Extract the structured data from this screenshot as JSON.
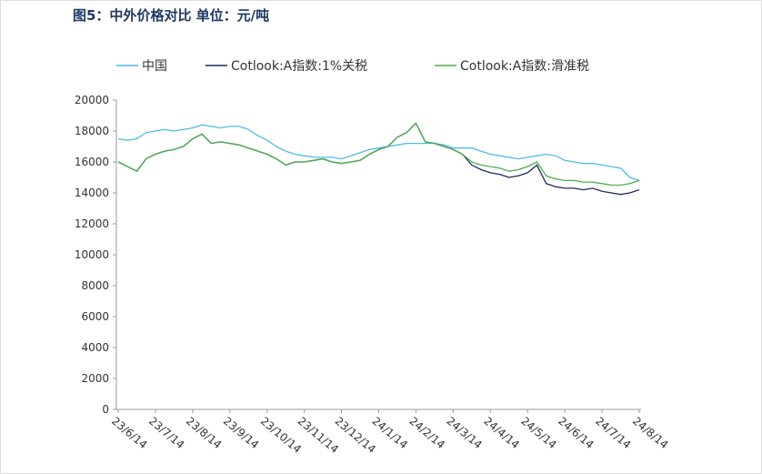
{
  "chart_data": {
    "type": "line",
    "title": "图5：中外价格对比 单位：元/吨",
    "categories": [
      "23/6/14",
      null,
      null,
      null,
      "23/7/14",
      null,
      null,
      null,
      "23/8/14",
      null,
      null,
      null,
      "23/9/14",
      null,
      null,
      null,
      "23/10/14",
      null,
      null,
      null,
      "23/11/14",
      null,
      null,
      null,
      "23/12/14",
      null,
      null,
      null,
      "24/1/14",
      null,
      null,
      null,
      "24/2/14",
      null,
      null,
      null,
      "24/3/14",
      null,
      null,
      null,
      "24/4/14",
      null,
      null,
      null,
      "24/5/14",
      null,
      null,
      null,
      "24/6/14",
      null,
      null,
      null,
      "24/7/14",
      null,
      null,
      null,
      "24/8/14"
    ],
    "series": [
      {
        "name": "中国",
        "color": "#4fbde6",
        "values": [
          17500,
          17400,
          17500,
          17900,
          18000,
          18100,
          18000,
          18100,
          18200,
          18400,
          18300,
          18200,
          18300,
          18300,
          18100,
          17700,
          17400,
          17000,
          16700,
          16500,
          16400,
          16300,
          16300,
          16300,
          16200,
          16400,
          16600,
          16800,
          16900,
          17000,
          17100,
          17200,
          17200,
          17200,
          17200,
          17100,
          16900,
          16900,
          16900,
          16700,
          16500,
          16400,
          16300,
          16200,
          16300,
          16400,
          16500,
          16400,
          16100,
          16000,
          15900,
          15900,
          15800,
          15700,
          15600,
          15000,
          14800
        ]
      },
      {
        "name": "Cotlook:A指数:1%关税",
        "color": "#1f2d5a",
        "values": [
          16000,
          15700,
          15400,
          16200,
          16500,
          16700,
          16800,
          17000,
          17500,
          17800,
          17200,
          17300,
          17200,
          17100,
          16900,
          16700,
          16500,
          16200,
          15800,
          16000,
          16000,
          16100,
          16200,
          16000,
          15900,
          16000,
          16100,
          16500,
          16800,
          17000,
          17600,
          17900,
          18500,
          17300,
          17200,
          17000,
          16800,
          16500,
          15800,
          15500,
          15300,
          15200,
          15000,
          15100,
          15300,
          15800,
          14600,
          14400,
          14300,
          14300,
          14200,
          14300,
          14100,
          14000,
          13900,
          14000,
          14200
        ]
      },
      {
        "name": "Cotlook:A指数:滑准税",
        "color": "#4caf50",
        "values": [
          16000,
          15700,
          15400,
          16200,
          16500,
          16700,
          16800,
          17000,
          17500,
          17800,
          17200,
          17300,
          17200,
          17100,
          16900,
          16700,
          16500,
          16200,
          15800,
          16000,
          16000,
          16100,
          16200,
          16000,
          15900,
          16000,
          16100,
          16500,
          16800,
          17000,
          17600,
          17900,
          18500,
          17300,
          17200,
          17000,
          16800,
          16500,
          16000,
          15800,
          15700,
          15600,
          15400,
          15500,
          15700,
          16000,
          15100,
          14900,
          14800,
          14800,
          14700,
          14700,
          14600,
          14500,
          14500,
          14600,
          14800
        ]
      }
    ],
    "ylim": [
      0,
      20000
    ],
    "yticks": [
      0,
      2000,
      4000,
      6000,
      8000,
      10000,
      12000,
      14000,
      16000,
      18000,
      20000
    ],
    "grid": false
  }
}
